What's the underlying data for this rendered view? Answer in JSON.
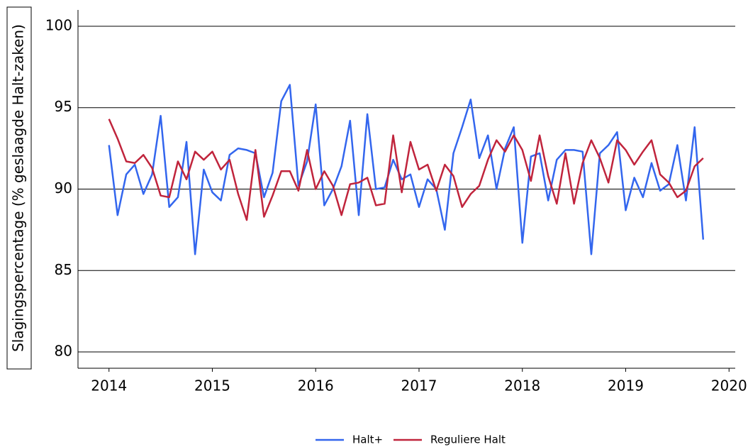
{
  "chart_data": {
    "type": "line",
    "y_label": "Slagingspercentage (% geslaagde Halt-zaken)",
    "x": [
      2014,
      2014.083,
      2014.167,
      2014.25,
      2014.333,
      2014.417,
      2014.5,
      2014.583,
      2014.667,
      2014.75,
      2014.833,
      2014.917,
      2015,
      2015.083,
      2015.167,
      2015.25,
      2015.333,
      2015.417,
      2015.5,
      2015.583,
      2015.667,
      2015.75,
      2015.833,
      2015.917,
      2016,
      2016.083,
      2016.167,
      2016.25,
      2016.333,
      2016.417,
      2016.5,
      2016.583,
      2016.667,
      2016.75,
      2016.833,
      2016.917,
      2017,
      2017.083,
      2017.167,
      2017.25,
      2017.333,
      2017.417,
      2017.5,
      2017.583,
      2017.667,
      2017.75,
      2017.833,
      2017.917,
      2018,
      2018.083,
      2018.167,
      2018.25,
      2018.333,
      2018.417,
      2018.5,
      2018.583,
      2018.667,
      2018.75,
      2018.833,
      2018.917,
      2019,
      2019.083,
      2019.167,
      2019.25,
      2019.333,
      2019.417,
      2019.5,
      2019.583,
      2019.667,
      2019.75
    ],
    "series": [
      {
        "name": "Halt+",
        "color": "#3366ee",
        "values": [
          92.7,
          88.4,
          90.9,
          91.5,
          89.7,
          90.9,
          94.5,
          88.9,
          89.5,
          92.9,
          86.0,
          91.2,
          89.8,
          89.3,
          92.1,
          92.5,
          92.4,
          92.2,
          89.5,
          91.0,
          95.4,
          96.4,
          90.2,
          91.7,
          95.2,
          89.0,
          90.0,
          91.4,
          94.2,
          88.4,
          94.6,
          90.0,
          90.1,
          91.8,
          90.6,
          90.9,
          88.9,
          90.6,
          90.0,
          87.5,
          92.2,
          93.8,
          95.5,
          91.9,
          93.3,
          90.0,
          92.5,
          93.8,
          86.7,
          92.0,
          92.2,
          89.3,
          91.8,
          92.4,
          92.4,
          92.3,
          86.0,
          92.2,
          92.7,
          93.5,
          88.7,
          90.7,
          89.5,
          91.6,
          89.9,
          90.3,
          92.7,
          89.3,
          93.8,
          86.9
        ]
      },
      {
        "name": "Reguliere Halt",
        "color": "#c0243c",
        "values": [
          94.3,
          93.1,
          91.7,
          91.6,
          92.1,
          91.3,
          89.6,
          89.5,
          91.7,
          90.6,
          92.3,
          91.8,
          92.3,
          91.2,
          91.8,
          89.7,
          88.1,
          92.4,
          88.3,
          89.6,
          91.1,
          91.1,
          89.9,
          92.4,
          90.0,
          91.1,
          90.2,
          88.4,
          90.3,
          90.4,
          90.7,
          89.0,
          89.1,
          93.3,
          89.8,
          92.9,
          91.2,
          91.5,
          89.9,
          91.5,
          90.8,
          88.9,
          89.7,
          90.2,
          91.8,
          93.0,
          92.3,
          93.3,
          92.4,
          90.5,
          93.3,
          90.8,
          89.1,
          92.2,
          89.1,
          91.6,
          93.0,
          91.9,
          90.4,
          93.0,
          92.4,
          91.5,
          92.3,
          93.0,
          90.9,
          90.4,
          89.5,
          89.9,
          91.4,
          91.9
        ]
      }
    ],
    "xlim": [
      2013.7,
      2020.06
    ],
    "xticks": [
      2014,
      2015,
      2016,
      2017,
      2018,
      2019,
      2020
    ],
    "ylim": [
      79,
      101
    ],
    "yticks": [
      80,
      85,
      90,
      95,
      100
    ],
    "grid": true,
    "legend": "bottom"
  }
}
